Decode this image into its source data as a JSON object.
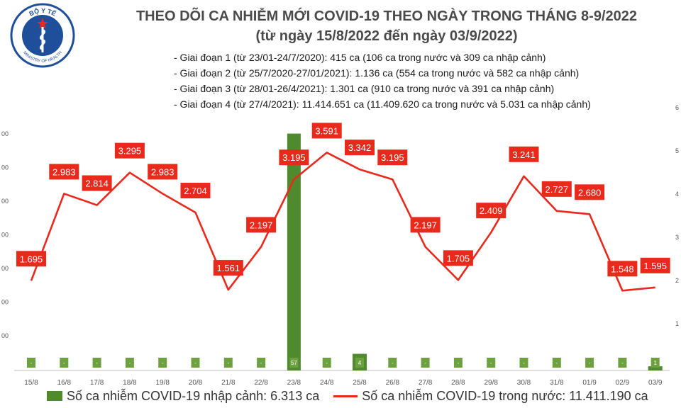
{
  "header": {
    "title_line1": "THEO DÕI CA NHIỄM MỚI COVID-19 THEO NGÀY TRONG THÁNG 8-9/2022",
    "title_line2": "(từ ngày 15/8/2022 đến ngày 03/9/2022)",
    "logo_top_text": "BỘ Y TẾ",
    "logo_bottom_text": "MINISTRY OF HEALTH",
    "phases": [
      "- Giai đoạn 1 (từ 23/01-24/7/2020): 415 ca (106 ca trong nước và 309 ca nhập cảnh)",
      "- Giai đoạn 2 (từ 25/7/2020-27/01/2021): 1.136 ca (554 ca trong nước và 582 ca nhập cảnh)",
      "- Giai đoạn 3 (từ 28/01-26/4/2021): 1.301 ca (910 ca trong nước và 391 ca nhập cảnh)",
      "- Giai đoạn 4 (từ 27/4/2021): 11.414.651 ca (11.409.620 ca trong nước và 5.031 ca nhập cảnh)"
    ]
  },
  "legend": {
    "bar_label": "Số ca nhiễm COVID-19 nhập cảnh: 6.313 ca",
    "line_label": "Số ca nhiễm COVID-19 trong nước: 11.411.190 ca"
  },
  "colors": {
    "bar": "#4f8a2e",
    "bar_label_bg": "#6da140",
    "line": "#e8291c",
    "label_bg": "#e8291c",
    "title": "#4a4a4a",
    "axis_text": "#555555",
    "logo_ring": "#1f4e9a"
  },
  "chart_data": {
    "type": "bar",
    "categories": [
      "15/8",
      "16/8",
      "17/8",
      "18/8",
      "19/8",
      "20/8",
      "21/8",
      "22/8",
      "23/8",
      "24/8",
      "25/8",
      "26/8",
      "27/8",
      "28/8",
      "29/8",
      "30/8",
      "31/8",
      "01/9",
      "02/9",
      "03/9"
    ],
    "series": [
      {
        "type": "bar",
        "axis": "right",
        "values": [
          0,
          0,
          0,
          0,
          0,
          0,
          0,
          0,
          57,
          0,
          4,
          0,
          0,
          0,
          0,
          0,
          0,
          0,
          0,
          1
        ],
        "labels": [
          "-",
          "-",
          "-",
          "-",
          "-",
          "-",
          "-",
          "-",
          "57",
          "-",
          "4",
          "-",
          "-",
          "-",
          "-",
          "-",
          "-",
          "-",
          "-",
          "1"
        ]
      },
      {
        "type": "line",
        "axis": "left",
        "values": [
          1695,
          2983,
          2814,
          3295,
          2983,
          2704,
          1561,
          2197,
          3195,
          3591,
          3342,
          3195,
          2197,
          1705,
          2409,
          3241,
          2727,
          2680,
          1548,
          1595
        ],
        "labels": [
          "1.695",
          "2.983",
          "2.814",
          "3.295",
          "2.983",
          "2.704",
          "1.561",
          "2.197",
          "3.195",
          "3.591",
          "3.342",
          "3.195",
          "2.197",
          "1.705",
          "2.409",
          "3.241",
          "2.727",
          "2.680",
          "1.548",
          "1.595"
        ]
      }
    ],
    "left_ticks": [
      "00",
      "00",
      "00",
      "00",
      "00",
      "00",
      "00"
    ],
    "right_ticks": [
      "6",
      "5",
      "4",
      "3",
      "2",
      "1"
    ],
    "ylim_left": [
      0,
      3600
    ],
    "ylim_right": [
      0,
      60
    ],
    "grid": false,
    "legend_position": "bottom"
  }
}
